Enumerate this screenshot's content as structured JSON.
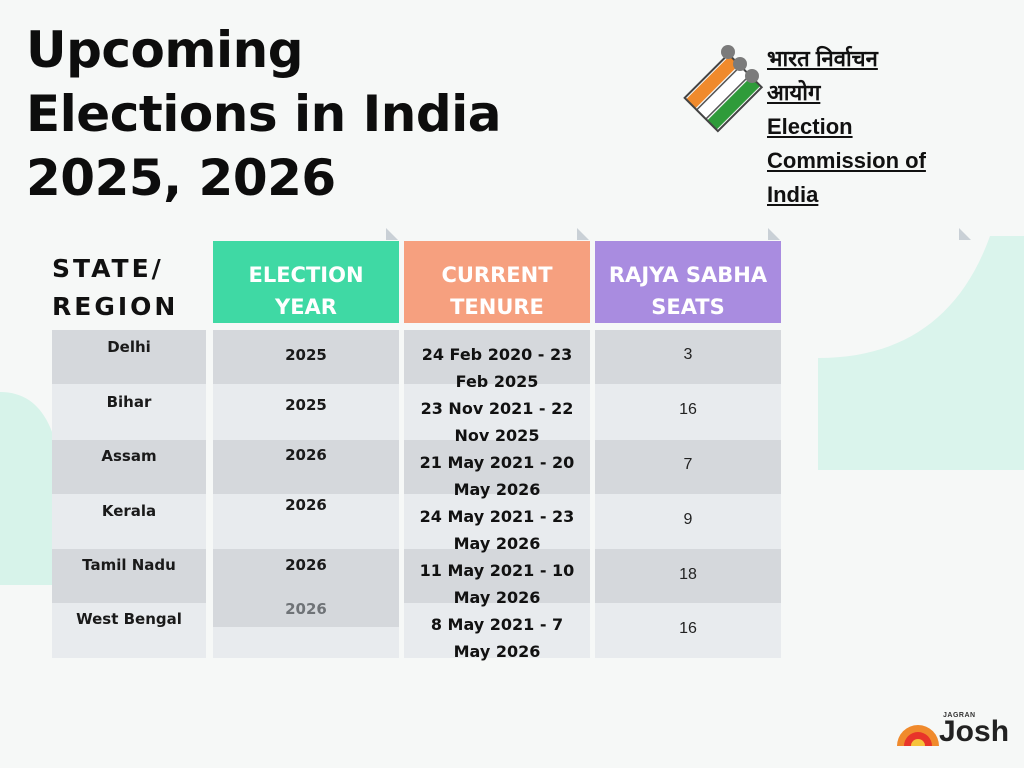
{
  "title": {
    "line1": "Upcoming",
    "line2": "Elections in India",
    "line3": "2025, 2026"
  },
  "eci": {
    "hindi_line1": "भारत निर्वाचन",
    "hindi_line2": "आयोग",
    "en_line1": "Election",
    "en_line2": "Commission of",
    "en_line3": "India"
  },
  "headers": {
    "state_line1": "STATE/",
    "state_line2": "REGION",
    "year_line1": "ELECTION",
    "year_line2": "YEAR",
    "tenure_line1": "CURRENT",
    "tenure_line2": "TENURE",
    "seats_line1": "RAJYA SABHA",
    "seats_line2": "SEATS"
  },
  "colors": {
    "year_header": "#3fd9a4",
    "tenure_header": "#f6a07f",
    "seats_header": "#a98ce0",
    "row_dark": "#d5d8dc",
    "row_light": "#e8ebee",
    "deco": "#d7f3ea"
  },
  "rows": [
    {
      "state": "Delhi",
      "year": "2025",
      "tenure_a": "24 Feb 2020 - 23",
      "tenure_b": "Feb 2025",
      "seats": "3"
    },
    {
      "state": "Bihar",
      "year": "2025",
      "tenure_a": "23 Nov 2021 - 22",
      "tenure_b": "Nov 2025",
      "seats": "16"
    },
    {
      "state": "Assam",
      "year": "2026",
      "tenure_a": "21 May 2021 - 20",
      "tenure_b": "May 2026",
      "seats": "7"
    },
    {
      "state": "Kerala",
      "year": "2026",
      "tenure_a": "24 May 2021 - 23",
      "tenure_b": "May 2026",
      "seats": "9"
    },
    {
      "state": "Tamil Nadu",
      "year": "2026",
      "tenure_a": "11 May 2021 - 10",
      "tenure_b": "May 2026",
      "seats": "18"
    },
    {
      "state": "West Bengal",
      "year": "2026",
      "tenure_a": "8 May 2021 - 7",
      "tenure_b": "May 2026",
      "seats": "16"
    }
  ],
  "brand": {
    "small": "JAGRAN",
    "name": "Josh"
  }
}
